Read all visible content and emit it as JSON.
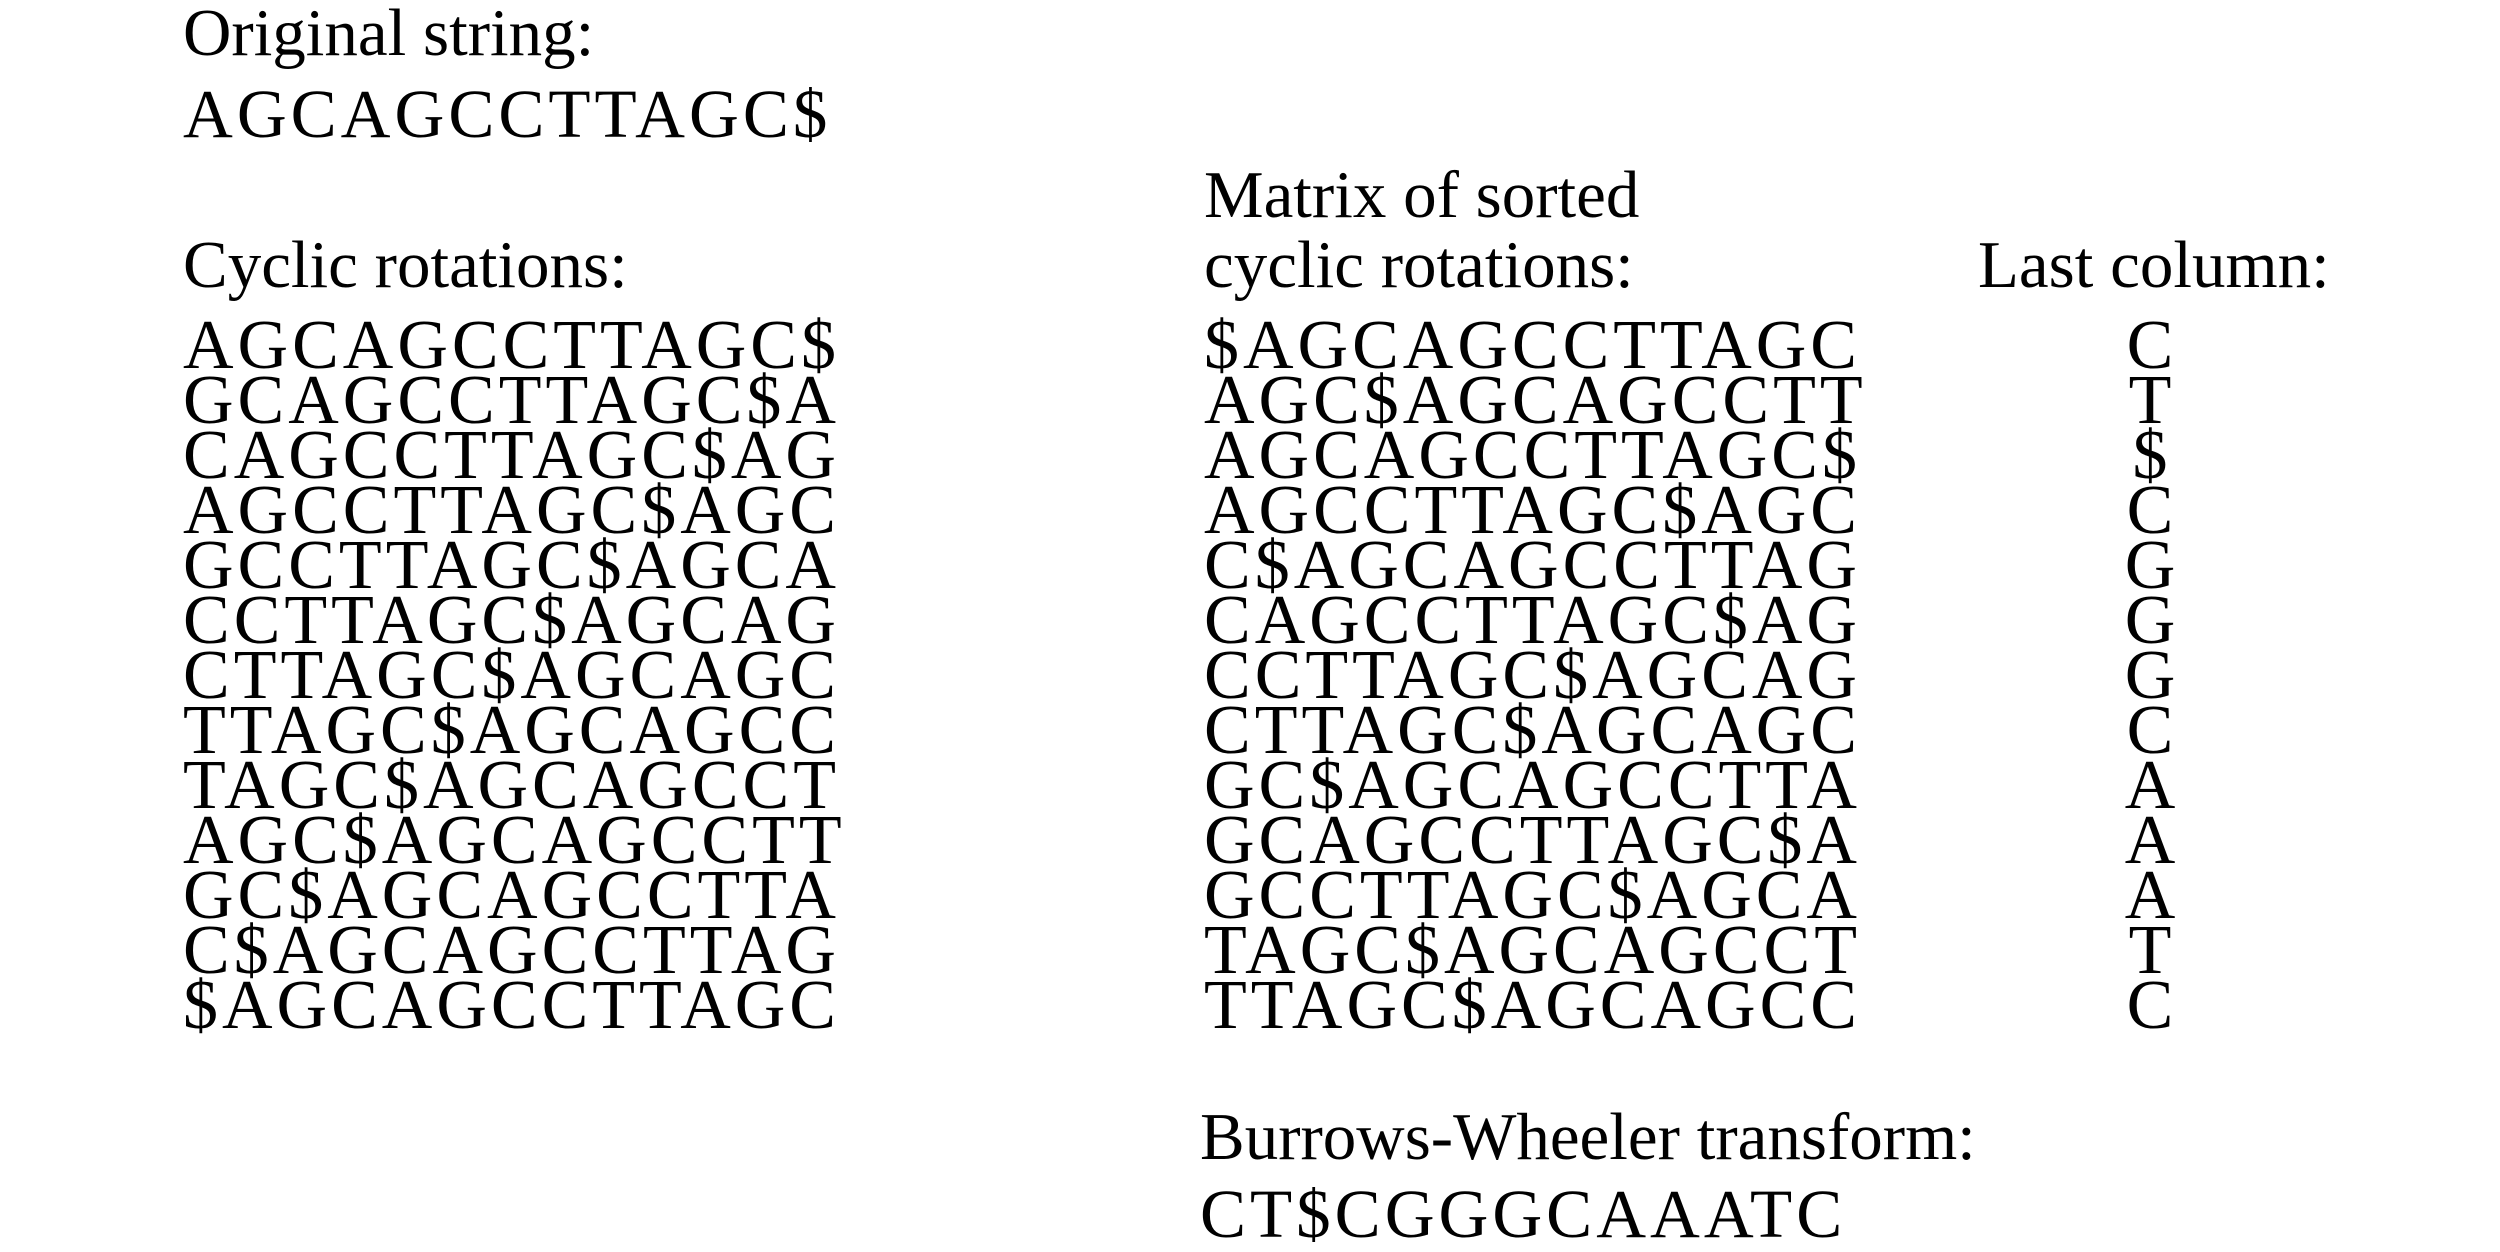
{
  "original": {
    "heading": "Original string:",
    "string": "AGCAGCCTTAGC$"
  },
  "rotations": {
    "heading": "Cyclic rotations:",
    "rows": [
      "AGCAGCCTTAGC$",
      "GCAGCCTTAGC$A",
      "CAGCCTTAGC$AG",
      "AGCCTTAGC$AGC",
      "GCCTTAGC$AGCA",
      "CCTTAGC$AGCAG",
      "CTTAGC$AGCAGC",
      "TTAGC$AGCAGCC",
      "TAGC$AGCAGCCT",
      "AGC$AGCAGCCTT",
      "GC$AGCAGCCTTA",
      "C$AGCAGCCTTAG",
      "$AGCAGCCTTAGC"
    ]
  },
  "sorted": {
    "heading_line1": "Matrix of sorted",
    "heading_line2": "cyclic rotations:",
    "rows": [
      "$AGCAGCCTTAGC",
      "AGC$AGCAGCCTT",
      "AGCAGCCTTAGC$",
      "AGCCTTAGC$AGC",
      "C$AGCAGCCTTAG",
      "CAGCCTTAGC$AG",
      "CCTTAGC$AGCAG",
      "CTTAGC$AGCAGC",
      "GC$AGCAGCCTTA",
      "GCAGCCTTAGC$A",
      "GCCTTAGC$AGCA",
      "TAGC$AGCAGCCT",
      "TTAGC$AGCAGCC"
    ]
  },
  "last_column": {
    "heading": "Last column:",
    "values": [
      "C",
      "T",
      "$",
      "C",
      "G",
      "G",
      "G",
      "C",
      "A",
      "A",
      "A",
      "T",
      "C"
    ]
  },
  "bwt": {
    "heading": "Burrows-Wheeler transform:",
    "string": "CT$CGGGCAAATC"
  }
}
